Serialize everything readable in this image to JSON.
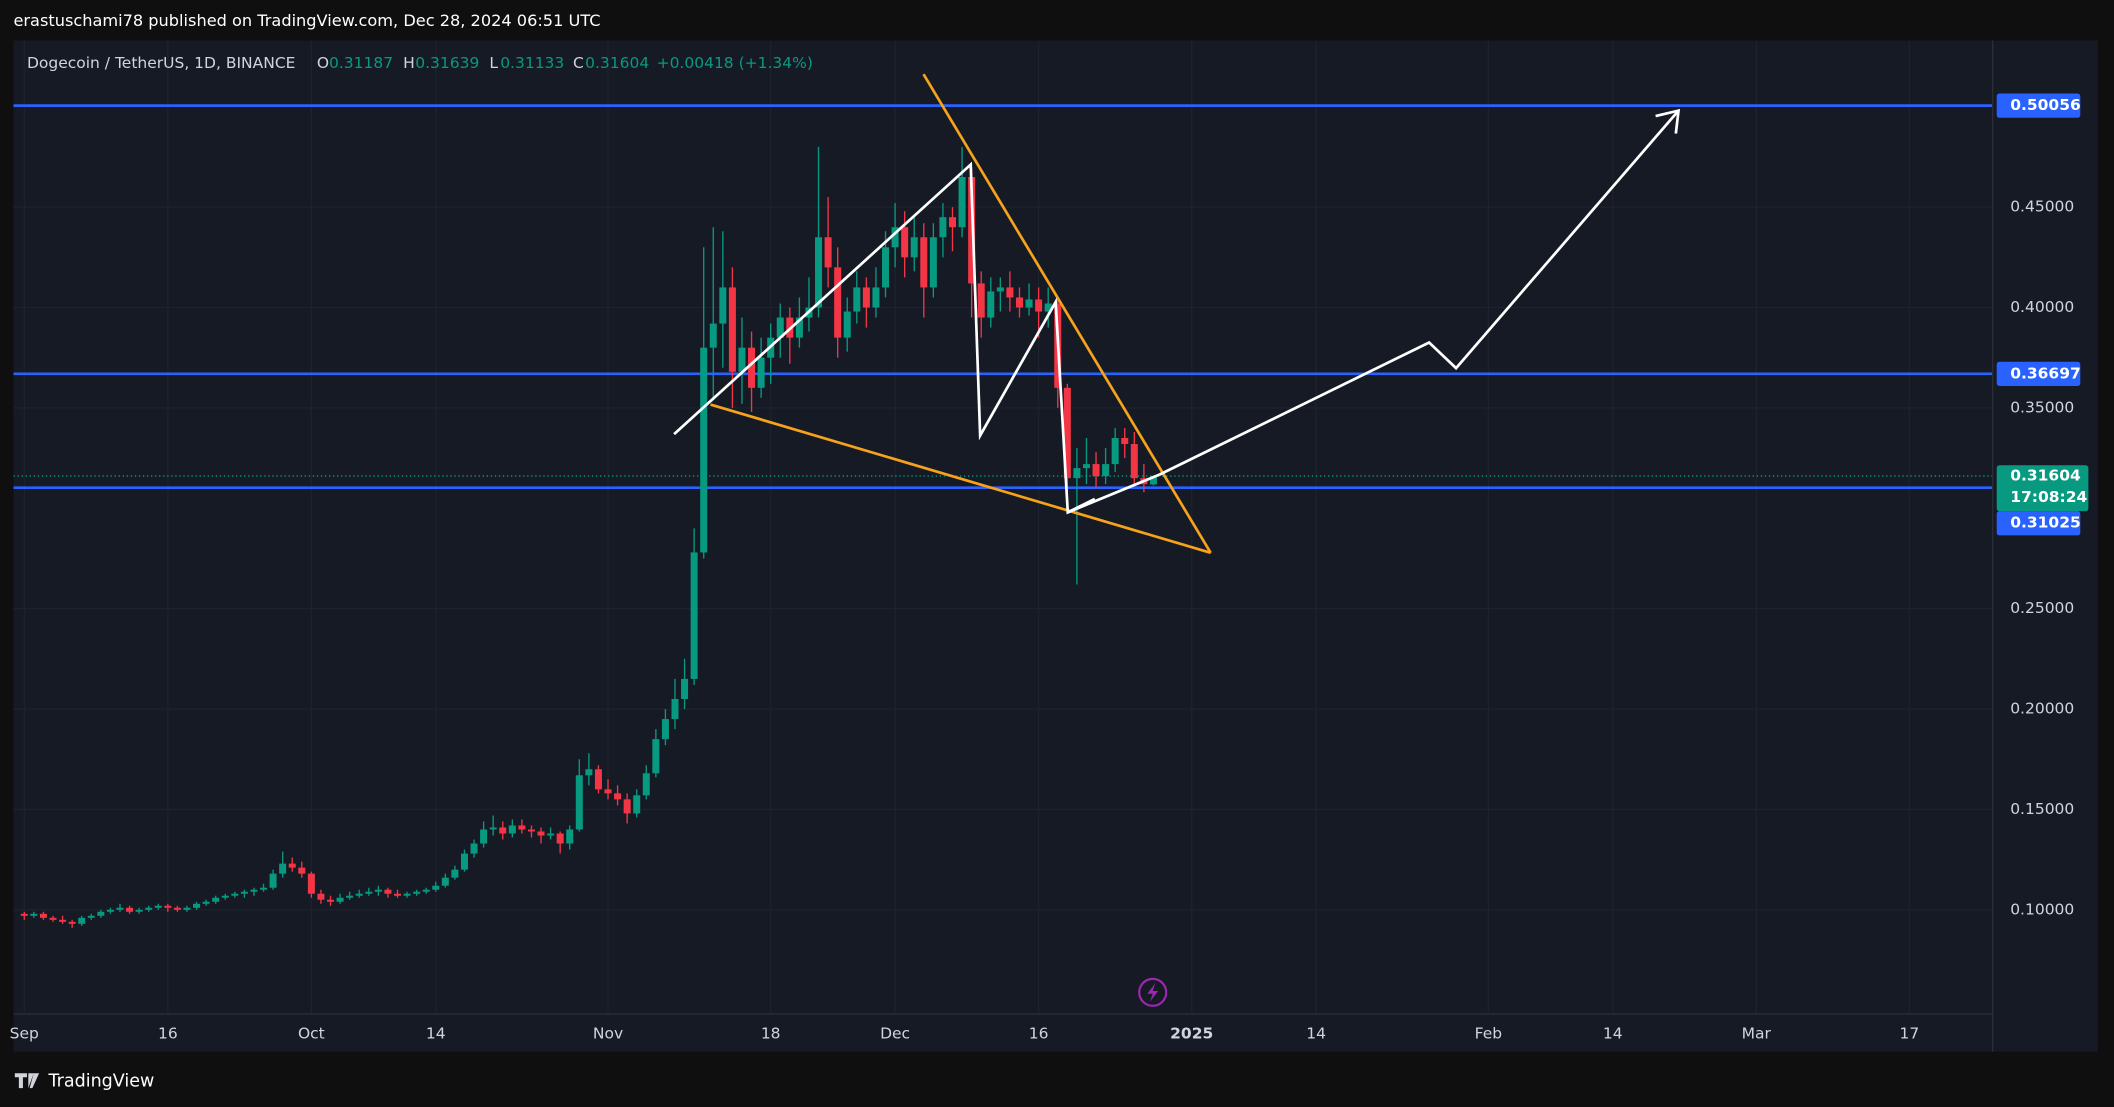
{
  "header": "erastuschami78 published on TradingView.com, Dec 28, 2024 06:51 UTC",
  "footer": "TradingView",
  "chart_data": {
    "type": "candlestick",
    "symbol": "Dogecoin / TetherUS, 1D, BINANCE",
    "ohlc_labels": [
      "O",
      "H",
      "L",
      "C"
    ],
    "change": "+0.00418 (+1.34%)",
    "countdown": "17:08:24",
    "up_color": "#089981",
    "down_color": "#f23645",
    "grid": true,
    "ylim": [
      0.03,
      0.533
    ],
    "yticks": [
      {
        "value": 0.1,
        "label": "0.10000"
      },
      {
        "value": 0.15,
        "label": "0.15000"
      },
      {
        "value": 0.2,
        "label": "0.20000"
      },
      {
        "value": 0.25,
        "label": "0.25000"
      },
      {
        "value": 0.35,
        "label": "0.35000"
      },
      {
        "value": 0.4,
        "label": "0.40000"
      },
      {
        "value": 0.45,
        "label": "0.45000"
      }
    ],
    "xlim": [
      -1.13,
      205.7
    ],
    "xticks": [
      {
        "value": 0,
        "label": "Sep"
      },
      {
        "value": 15,
        "label": "16"
      },
      {
        "value": 30,
        "label": "Oct"
      },
      {
        "value": 43,
        "label": "14"
      },
      {
        "value": 61,
        "label": "Nov"
      },
      {
        "value": 78,
        "label": "18"
      },
      {
        "value": 91,
        "label": "Dec"
      },
      {
        "value": 106,
        "label": "16"
      },
      {
        "value": 122,
        "label": "2025"
      },
      {
        "value": 135,
        "label": "14"
      },
      {
        "value": 153,
        "label": "Feb"
      },
      {
        "value": 166,
        "label": "14"
      },
      {
        "value": 181,
        "label": "Mar"
      },
      {
        "value": 197,
        "label": "17"
      }
    ],
    "levels": [
      {
        "value": 0.50056,
        "color": "#2962ff"
      },
      {
        "value": 0.36697,
        "color": "#2962ff"
      },
      {
        "value": 0.31025,
        "color": "#2962ff"
      }
    ],
    "x": [
      0,
      1,
      2,
      3,
      4,
      5,
      6,
      7,
      8,
      9,
      10,
      11,
      12,
      13,
      14,
      15,
      16,
      17,
      18,
      19,
      20,
      21,
      22,
      23,
      24,
      25,
      26,
      27,
      28,
      29,
      30,
      31,
      32,
      33,
      34,
      35,
      36,
      37,
      38,
      39,
      40,
      41,
      42,
      43,
      44,
      45,
      46,
      47,
      48,
      49,
      50,
      51,
      52,
      53,
      54,
      55,
      56,
      57,
      58,
      59,
      60,
      61,
      62,
      63,
      64,
      65,
      66,
      67,
      68,
      69,
      70,
      71,
      72,
      73,
      74,
      75,
      76,
      77,
      78,
      79,
      80,
      81,
      82,
      83,
      84,
      85,
      86,
      87,
      88,
      89,
      90,
      91,
      92,
      93,
      94,
      95,
      96,
      97,
      98,
      99,
      100,
      101,
      102,
      103,
      104,
      105,
      106,
      107,
      108,
      109,
      110,
      111,
      112,
      113,
      114,
      115,
      116,
      117,
      118
    ],
    "ohlc": [
      [
        0.098,
        0.099,
        0.095,
        0.097
      ],
      [
        0.097,
        0.099,
        0.096,
        0.098
      ],
      [
        0.098,
        0.099,
        0.095,
        0.096
      ],
      [
        0.096,
        0.097,
        0.094,
        0.095
      ],
      [
        0.095,
        0.097,
        0.093,
        0.094
      ],
      [
        0.094,
        0.095,
        0.091,
        0.093
      ],
      [
        0.093,
        0.097,
        0.092,
        0.096
      ],
      [
        0.096,
        0.098,
        0.095,
        0.097
      ],
      [
        0.097,
        0.1,
        0.096,
        0.099
      ],
      [
        0.099,
        0.101,
        0.098,
        0.1
      ],
      [
        0.1,
        0.103,
        0.099,
        0.101
      ],
      [
        0.101,
        0.102,
        0.098,
        0.099
      ],
      [
        0.099,
        0.101,
        0.098,
        0.1
      ],
      [
        0.1,
        0.102,
        0.099,
        0.101
      ],
      [
        0.101,
        0.103,
        0.1,
        0.102
      ],
      [
        0.102,
        0.103,
        0.099,
        0.101
      ],
      [
        0.101,
        0.102,
        0.099,
        0.1
      ],
      [
        0.1,
        0.102,
        0.099,
        0.101
      ],
      [
        0.101,
        0.104,
        0.1,
        0.103
      ],
      [
        0.103,
        0.105,
        0.102,
        0.104
      ],
      [
        0.104,
        0.107,
        0.103,
        0.106
      ],
      [
        0.106,
        0.108,
        0.105,
        0.107
      ],
      [
        0.107,
        0.109,
        0.106,
        0.108
      ],
      [
        0.108,
        0.11,
        0.106,
        0.109
      ],
      [
        0.109,
        0.111,
        0.107,
        0.11
      ],
      [
        0.11,
        0.113,
        0.109,
        0.111
      ],
      [
        0.111,
        0.12,
        0.11,
        0.118
      ],
      [
        0.118,
        0.129,
        0.116,
        0.123
      ],
      [
        0.123,
        0.126,
        0.119,
        0.121
      ],
      [
        0.121,
        0.124,
        0.116,
        0.118
      ],
      [
        0.118,
        0.119,
        0.106,
        0.108
      ],
      [
        0.108,
        0.11,
        0.103,
        0.105
      ],
      [
        0.105,
        0.107,
        0.102,
        0.104
      ],
      [
        0.104,
        0.108,
        0.103,
        0.106
      ],
      [
        0.106,
        0.109,
        0.105,
        0.107
      ],
      [
        0.107,
        0.11,
        0.106,
        0.108
      ],
      [
        0.108,
        0.111,
        0.107,
        0.109
      ],
      [
        0.109,
        0.112,
        0.107,
        0.11
      ],
      [
        0.11,
        0.111,
        0.106,
        0.108
      ],
      [
        0.108,
        0.11,
        0.106,
        0.107
      ],
      [
        0.107,
        0.109,
        0.106,
        0.108
      ],
      [
        0.108,
        0.11,
        0.107,
        0.109
      ],
      [
        0.109,
        0.111,
        0.108,
        0.11
      ],
      [
        0.11,
        0.114,
        0.109,
        0.112
      ],
      [
        0.112,
        0.118,
        0.111,
        0.116
      ],
      [
        0.116,
        0.122,
        0.115,
        0.12
      ],
      [
        0.12,
        0.13,
        0.119,
        0.128
      ],
      [
        0.128,
        0.135,
        0.126,
        0.133
      ],
      [
        0.133,
        0.144,
        0.131,
        0.14
      ],
      [
        0.14,
        0.147,
        0.137,
        0.141
      ],
      [
        0.141,
        0.144,
        0.135,
        0.138
      ],
      [
        0.138,
        0.145,
        0.136,
        0.142
      ],
      [
        0.142,
        0.145,
        0.138,
        0.14
      ],
      [
        0.14,
        0.142,
        0.136,
        0.139
      ],
      [
        0.139,
        0.141,
        0.133,
        0.137
      ],
      [
        0.137,
        0.141,
        0.135,
        0.138
      ],
      [
        0.138,
        0.139,
        0.128,
        0.133
      ],
      [
        0.133,
        0.142,
        0.13,
        0.14
      ],
      [
        0.14,
        0.175,
        0.139,
        0.167
      ],
      [
        0.167,
        0.178,
        0.162,
        0.17
      ],
      [
        0.17,
        0.172,
        0.158,
        0.16
      ],
      [
        0.16,
        0.165,
        0.155,
        0.158
      ],
      [
        0.158,
        0.162,
        0.152,
        0.155
      ],
      [
        0.155,
        0.158,
        0.143,
        0.148
      ],
      [
        0.148,
        0.16,
        0.146,
        0.157
      ],
      [
        0.157,
        0.172,
        0.155,
        0.168
      ],
      [
        0.168,
        0.19,
        0.166,
        0.185
      ],
      [
        0.185,
        0.2,
        0.182,
        0.195
      ],
      [
        0.195,
        0.215,
        0.19,
        0.205
      ],
      [
        0.205,
        0.225,
        0.2,
        0.215
      ],
      [
        0.215,
        0.29,
        0.212,
        0.278
      ],
      [
        0.278,
        0.43,
        0.275,
        0.38
      ],
      [
        0.38,
        0.44,
        0.355,
        0.392
      ],
      [
        0.392,
        0.438,
        0.37,
        0.41
      ],
      [
        0.41,
        0.42,
        0.35,
        0.368
      ],
      [
        0.368,
        0.395,
        0.352,
        0.38
      ],
      [
        0.38,
        0.388,
        0.348,
        0.36
      ],
      [
        0.36,
        0.385,
        0.355,
        0.375
      ],
      [
        0.375,
        0.392,
        0.362,
        0.385
      ],
      [
        0.385,
        0.402,
        0.375,
        0.395
      ],
      [
        0.395,
        0.4,
        0.372,
        0.385
      ],
      [
        0.385,
        0.405,
        0.38,
        0.395
      ],
      [
        0.395,
        0.415,
        0.388,
        0.4
      ],
      [
        0.4,
        0.48,
        0.395,
        0.435
      ],
      [
        0.435,
        0.455,
        0.41,
        0.42
      ],
      [
        0.42,
        0.43,
        0.375,
        0.385
      ],
      [
        0.385,
        0.405,
        0.378,
        0.398
      ],
      [
        0.398,
        0.418,
        0.392,
        0.41
      ],
      [
        0.41,
        0.415,
        0.39,
        0.4
      ],
      [
        0.4,
        0.42,
        0.395,
        0.41
      ],
      [
        0.41,
        0.438,
        0.405,
        0.43
      ],
      [
        0.43,
        0.452,
        0.42,
        0.44
      ],
      [
        0.44,
        0.448,
        0.415,
        0.425
      ],
      [
        0.425,
        0.445,
        0.418,
        0.435
      ],
      [
        0.435,
        0.442,
        0.395,
        0.41
      ],
      [
        0.41,
        0.442,
        0.405,
        0.435
      ],
      [
        0.435,
        0.452,
        0.425,
        0.445
      ],
      [
        0.445,
        0.45,
        0.428,
        0.44
      ],
      [
        0.44,
        0.48,
        0.435,
        0.465
      ],
      [
        0.465,
        0.47,
        0.395,
        0.412
      ],
      [
        0.412,
        0.418,
        0.385,
        0.395
      ],
      [
        0.395,
        0.415,
        0.39,
        0.408
      ],
      [
        0.408,
        0.415,
        0.398,
        0.41
      ],
      [
        0.41,
        0.418,
        0.398,
        0.405
      ],
      [
        0.405,
        0.41,
        0.395,
        0.4
      ],
      [
        0.4,
        0.412,
        0.396,
        0.404
      ],
      [
        0.404,
        0.41,
        0.385,
        0.398
      ],
      [
        0.398,
        0.41,
        0.39,
        0.402
      ],
      [
        0.402,
        0.405,
        0.35,
        0.36
      ],
      [
        0.36,
        0.362,
        0.305,
        0.315
      ],
      [
        0.315,
        0.33,
        0.262,
        0.32
      ],
      [
        0.32,
        0.335,
        0.312,
        0.322
      ],
      [
        0.322,
        0.328,
        0.31,
        0.316
      ],
      [
        0.316,
        0.33,
        0.312,
        0.322
      ],
      [
        0.322,
        0.34,
        0.318,
        0.335
      ],
      [
        0.335,
        0.34,
        0.325,
        0.332
      ],
      [
        0.332,
        0.338,
        0.312,
        0.315
      ],
      [
        0.315,
        0.322,
        0.308,
        0.312
      ],
      [
        0.31187,
        0.31639,
        0.31133,
        0.31604
      ]
    ]
  }
}
